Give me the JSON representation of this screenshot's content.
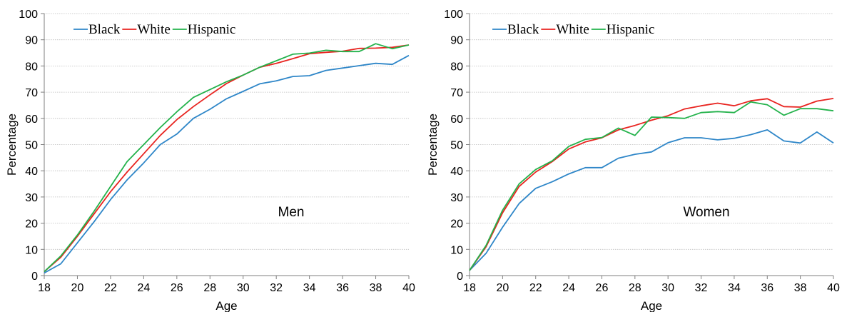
{
  "chart_data": [
    {
      "type": "line",
      "panel_label": "Men",
      "xlabel": "Age",
      "ylabel": "Percentage",
      "xlim": [
        18,
        40
      ],
      "ylim": [
        0,
        100
      ],
      "xticks": [
        "18",
        "20",
        "22",
        "24",
        "26",
        "28",
        "30",
        "32",
        "34",
        "36",
        "38",
        "40"
      ],
      "yticks": [
        "0",
        "10",
        "20",
        "30",
        "40",
        "50",
        "60",
        "70",
        "80",
        "90",
        "100"
      ],
      "grid": true,
      "legend_position": "top-left",
      "x": [
        18,
        19,
        20,
        21,
        22,
        23,
        24,
        25,
        26,
        27,
        28,
        29,
        30,
        31,
        32,
        33,
        34,
        35,
        36,
        37,
        38,
        39,
        40
      ],
      "series": [
        {
          "name": "Black",
          "color": "#2e86c8",
          "values": [
            1,
            4.5,
            12.5,
            20.5,
            29,
            36.5,
            43,
            50,
            54,
            60,
            63.5,
            67.5,
            70.3,
            73.2,
            74.3,
            76,
            76.3,
            78.3,
            79.2,
            80.1,
            81,
            80.6,
            84
          ]
        },
        {
          "name": "White",
          "color": "#e8231f",
          "values": [
            1.5,
            7,
            15,
            23.5,
            32,
            39.5,
            46.5,
            53.5,
            59.5,
            64.5,
            69,
            73.3,
            76.5,
            79.5,
            81,
            82.8,
            84.7,
            85.2,
            85.6,
            86.7,
            86.8,
            87.1,
            88
          ]
        },
        {
          "name": "Hispanic",
          "color": "#23b24b",
          "values": [
            1.5,
            7.5,
            15.5,
            24.5,
            34,
            43.5,
            50,
            56.5,
            62.5,
            68,
            71,
            74,
            76.5,
            79.5,
            82,
            84.5,
            84.9,
            86,
            85.5,
            85.5,
            88.5,
            86.6,
            88
          ]
        }
      ]
    },
    {
      "type": "line",
      "panel_label": "Women",
      "xlabel": "Age",
      "ylabel": "Percentage",
      "xlim": [
        18,
        40
      ],
      "ylim": [
        0,
        100
      ],
      "xticks": [
        "18",
        "20",
        "22",
        "24",
        "26",
        "28",
        "30",
        "32",
        "34",
        "36",
        "38",
        "40"
      ],
      "yticks": [
        "0",
        "10",
        "20",
        "30",
        "40",
        "50",
        "60",
        "70",
        "80",
        "90",
        "100"
      ],
      "grid": true,
      "legend_position": "top-left",
      "x": [
        18,
        19,
        20,
        21,
        22,
        23,
        24,
        25,
        26,
        27,
        28,
        29,
        30,
        31,
        32,
        33,
        34,
        35,
        36,
        37,
        38,
        39,
        40
      ],
      "series": [
        {
          "name": "Black",
          "color": "#2e86c8",
          "values": [
            2,
            8.5,
            18.5,
            27.5,
            33.3,
            35.8,
            38.8,
            41.2,
            41.2,
            44.8,
            46.3,
            47.2,
            50.7,
            52.6,
            52.6,
            51.8,
            52.4,
            53.8,
            55.6,
            51.4,
            50.6,
            54.8,
            50.6
          ]
        },
        {
          "name": "White",
          "color": "#e8231f",
          "values": [
            2,
            11,
            24,
            34,
            39.5,
            43.5,
            48.3,
            51,
            52.6,
            55.6,
            57.3,
            59.3,
            61,
            63.6,
            64.8,
            65.8,
            64.8,
            66.7,
            67.5,
            64.5,
            64.3,
            66.6,
            67.6
          ]
        },
        {
          "name": "Hispanic",
          "color": "#23b24b",
          "values": [
            2,
            11.5,
            25,
            35,
            40.5,
            43.8,
            49.3,
            52,
            52.7,
            56.3,
            53.5,
            60.5,
            60.3,
            60,
            62.2,
            62.6,
            62.2,
            66.3,
            65.2,
            61.2,
            63.7,
            63.7,
            62.9
          ]
        }
      ]
    }
  ]
}
